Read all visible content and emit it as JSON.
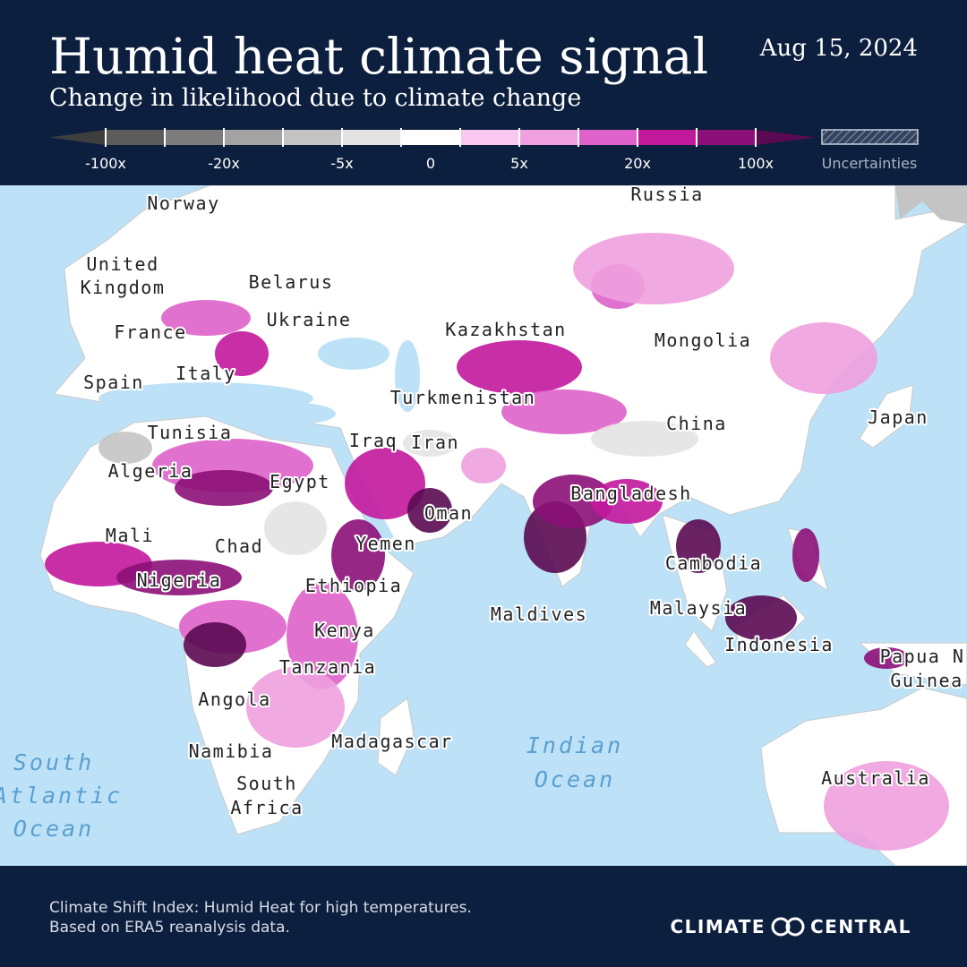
{
  "header": {
    "title": "Humid heat climate signal",
    "subtitle": "Change in likelihood due to climate change",
    "date": "Aug 15, 2024"
  },
  "legend": {
    "labels": [
      "-100x",
      "-20x",
      "-5x",
      "0",
      "5x",
      "20x",
      "100x"
    ],
    "colors": [
      "#3e3e3e",
      "#5c5c5c",
      "#7d7d7d",
      "#a3a3a3",
      "#c4c4c4",
      "#e3e3e3",
      "#ffffff",
      "#f9c8ef",
      "#f0a0df",
      "#de62c9",
      "#c2189c",
      "#8c1077",
      "#5a0a52"
    ],
    "uncertainties": "Uncertainties"
  },
  "map": {
    "land_labels": [
      "Norway",
      "Russia",
      "United",
      "Kingdom",
      "Belarus",
      "Ukraine",
      "France",
      "Mongolia",
      "Kazakhstan",
      "Italy",
      "Spain",
      "Turkmenistan",
      "China",
      "Japan",
      "Tunisia",
      "Iraq",
      "Iran",
      "Algeria",
      "Egypt",
      "Bangladesh",
      "Oman",
      "Mali",
      "Chad",
      "Yemen",
      "Cambodia",
      "Nigeria",
      "Ethiopia",
      "Maldives",
      "Malaysia",
      "Kenya",
      "Indonesia",
      "Papua N",
      "Guinea",
      "Tanzania",
      "Angola",
      "Madagascar",
      "Namibia",
      "South",
      "Africa",
      "Australia"
    ],
    "ocean_labels": [
      "South",
      "Atlantic",
      "Ocean",
      "Indian",
      "Ocean"
    ]
  },
  "footer": {
    "note_lines": [
      "Climate Shift Index: Humid Heat for high temperatures.",
      "Based on ERA5 reanalysis data."
    ],
    "logo": [
      "CLIMATE",
      "CENTRAL"
    ]
  }
}
